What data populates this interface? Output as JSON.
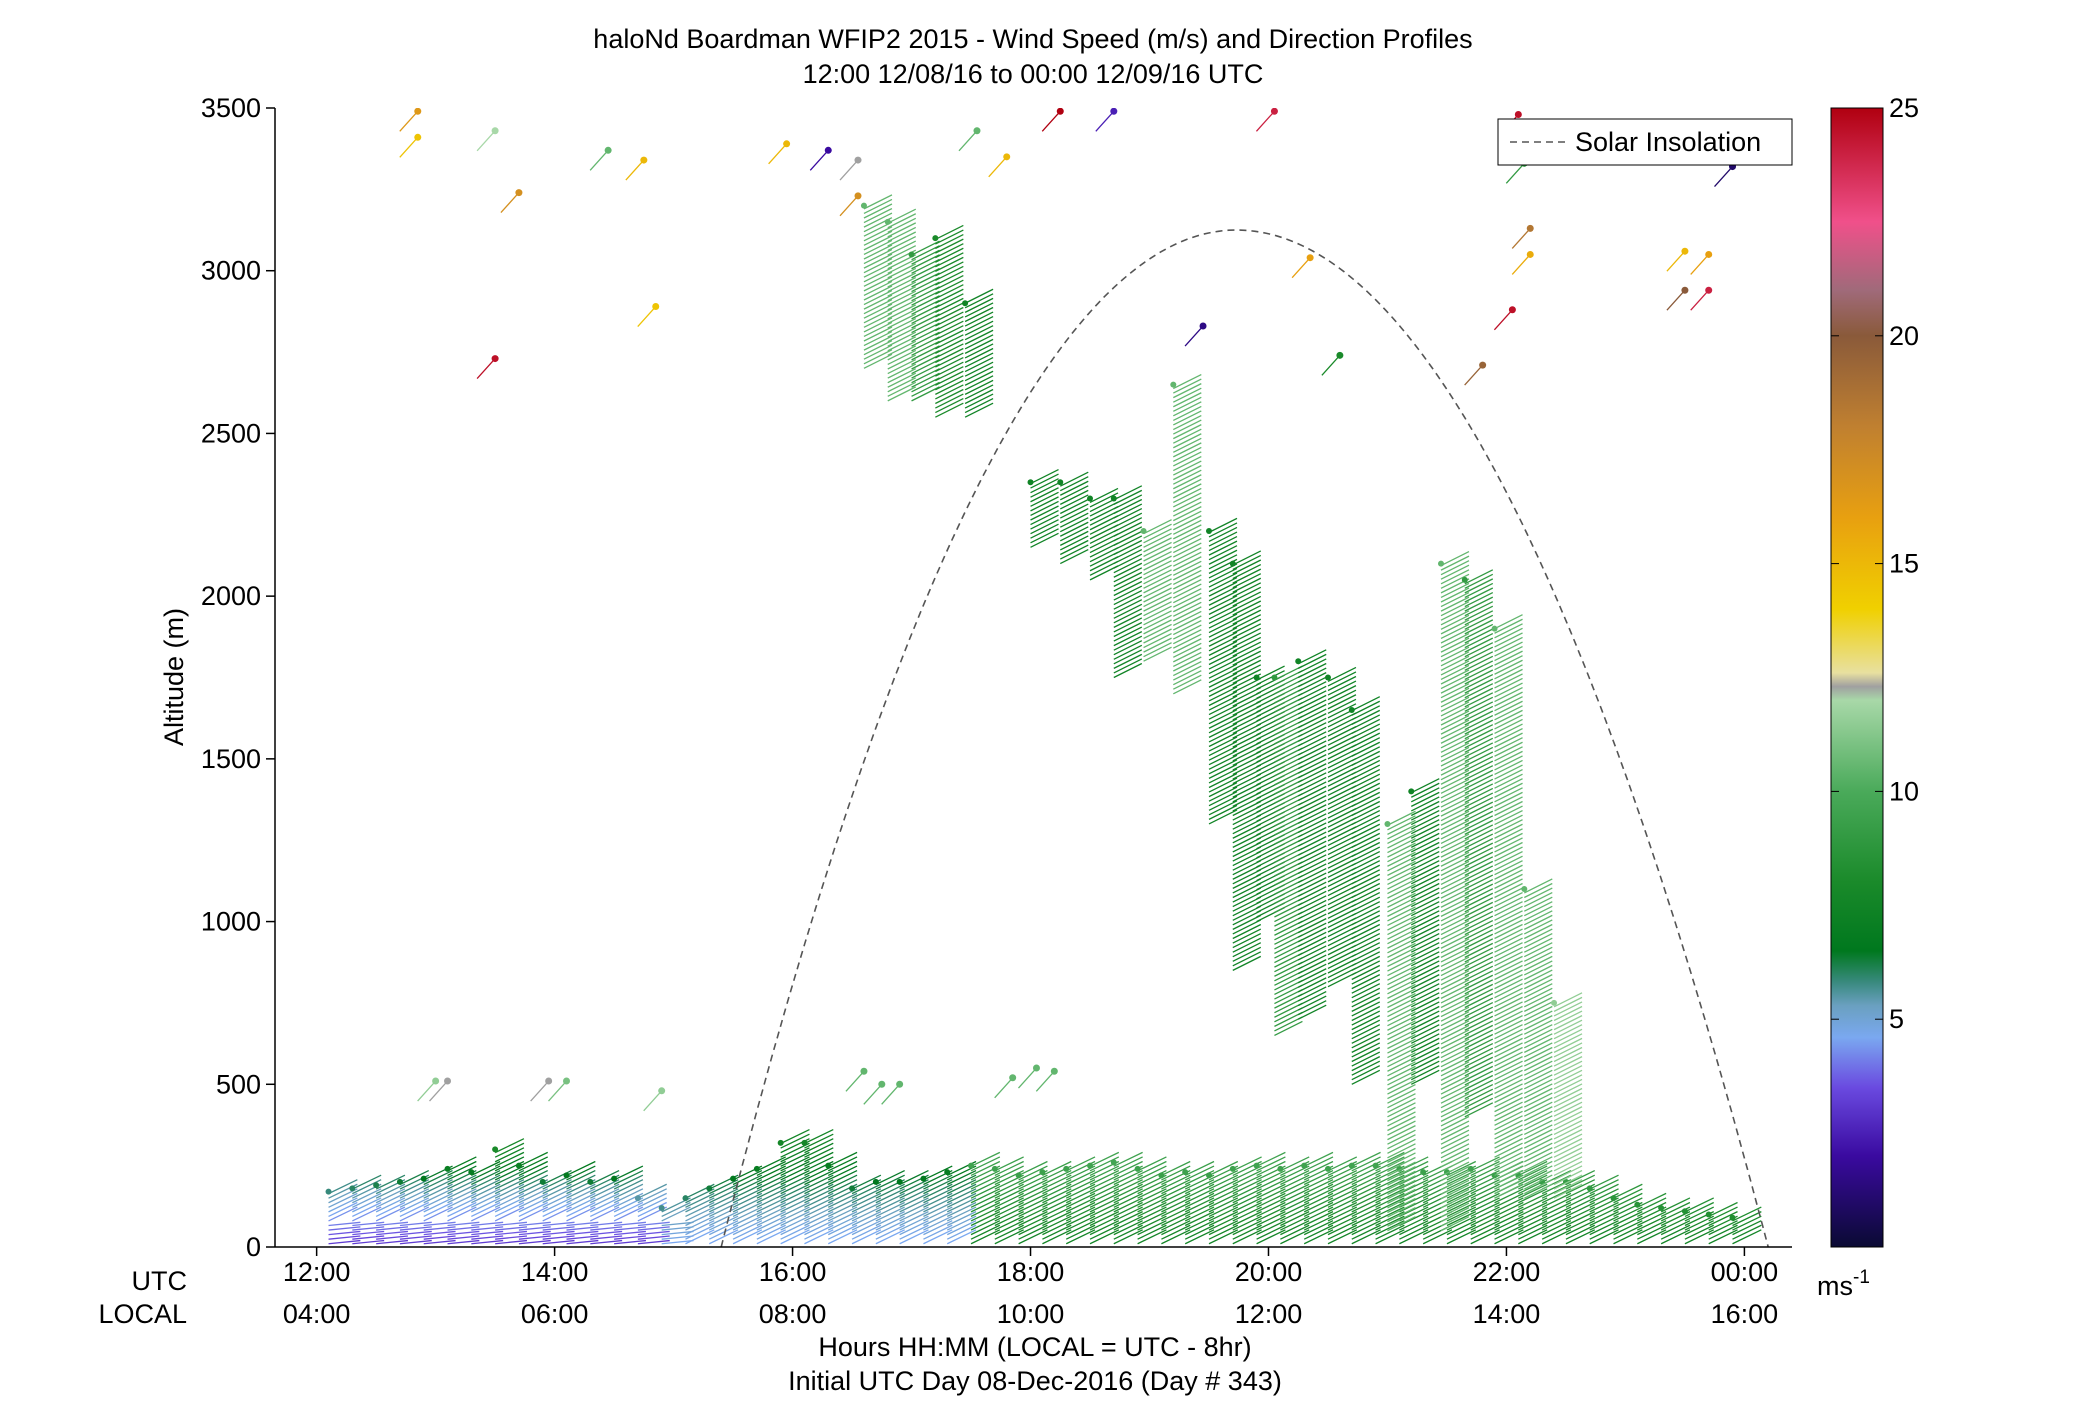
{
  "chart_data": {
    "type": "scatter",
    "title": "haloNd Boardman WFIP2 2015 - Wind Speed (m/s) and Direction Profiles",
    "subtitle": "12:00 12/08/16 to 00:00 12/09/16  UTC",
    "ylabel": "Altitude (m)",
    "xlabel": "Hours HH:MM  (LOCAL = UTC - 8hr)",
    "xlabel2": "Initial UTC Day 08-Dec-2016 (Day # 343)",
    "row_label_utc": "UTC",
    "row_label_local": "LOCAL",
    "xlim_hours": [
      11.65,
      24.4
    ],
    "ylim": [
      0,
      3500
    ],
    "y_ticks": [
      {
        "value": 0,
        "label": "0"
      },
      {
        "value": 500,
        "label": "500"
      },
      {
        "value": 1000,
        "label": "1000"
      },
      {
        "value": 1500,
        "label": "1500"
      },
      {
        "value": 2000,
        "label": "2000"
      },
      {
        "value": 2500,
        "label": "2500"
      },
      {
        "value": 3000,
        "label": "3000"
      },
      {
        "value": 3500,
        "label": "3500"
      }
    ],
    "x_ticks": [
      {
        "hour": 12,
        "utc": "12:00",
        "local": "04:00"
      },
      {
        "hour": 14,
        "utc": "14:00",
        "local": "06:00"
      },
      {
        "hour": 16,
        "utc": "16:00",
        "local": "08:00"
      },
      {
        "hour": 18,
        "utc": "18:00",
        "local": "10:00"
      },
      {
        "hour": 20,
        "utc": "20:00",
        "local": "12:00"
      },
      {
        "hour": 22,
        "utc": "22:00",
        "local": "14:00"
      },
      {
        "hour": 24,
        "utc": "00:00",
        "local": "16:00"
      }
    ],
    "legend": {
      "entry": "Solar Insolation",
      "position": "top-right",
      "style": "dashed",
      "color": "#555555"
    },
    "solar_insolation": {
      "start_hour": 15.4,
      "peak_hour": 19.73,
      "peak_altitude": 3125,
      "end_hour": 24.2
    },
    "colorbar": {
      "min": 0,
      "max": 25,
      "ticks": [
        {
          "value": 5,
          "label": "5"
        },
        {
          "value": 10,
          "label": "10"
        },
        {
          "value": 15,
          "label": "15"
        },
        {
          "value": 20,
          "label": "20"
        },
        {
          "value": 25,
          "label": "25"
        }
      ],
      "unit_label": "ms",
      "unit_sup": "-1",
      "stops": [
        {
          "v": 0,
          "c": "#0a0a33"
        },
        {
          "v": 2,
          "c": "#3a0aa0"
        },
        {
          "v": 3.5,
          "c": "#6a4ae0"
        },
        {
          "v": 4.6,
          "c": "#7aa8f0"
        },
        {
          "v": 5.3,
          "c": "#6aa0c0"
        },
        {
          "v": 5.8,
          "c": "#3a8a80"
        },
        {
          "v": 6.5,
          "c": "#00781e"
        },
        {
          "v": 8,
          "c": "#1a8a2a"
        },
        {
          "v": 10,
          "c": "#4aaa5a"
        },
        {
          "v": 12,
          "c": "#a8d8a8"
        },
        {
          "v": 12.3,
          "c": "#a0a0a0"
        },
        {
          "v": 12.6,
          "c": "#e8e0a0"
        },
        {
          "v": 14,
          "c": "#f0d000"
        },
        {
          "v": 16,
          "c": "#e8a010"
        },
        {
          "v": 18,
          "c": "#c08030"
        },
        {
          "v": 20,
          "c": "#8a5a3a"
        },
        {
          "v": 21,
          "c": "#a06a7a"
        },
        {
          "v": 22.5,
          "c": "#f0508a"
        },
        {
          "v": 25,
          "c": "#b00010"
        }
      ]
    },
    "profile_times_hours": [
      12.1,
      12.3,
      12.5,
      12.7,
      12.9,
      13.1,
      13.3,
      13.5,
      13.7,
      13.9,
      14.1,
      14.3,
      14.5,
      14.7,
      14.9,
      15.1,
      15.3,
      15.5,
      15.7,
      15.9,
      16.1,
      16.3,
      16.5,
      16.7,
      16.9,
      17.1,
      17.3,
      17.5,
      17.7,
      17.9,
      18.1,
      18.3,
      18.5,
      18.7,
      18.9,
      19.1,
      19.3,
      19.5,
      19.7,
      19.9,
      20.1,
      20.3,
      20.5,
      20.7,
      20.9,
      21.1,
      21.3,
      21.5,
      21.7,
      21.9,
      22.1,
      22.3,
      22.5,
      22.7,
      22.9,
      23.1,
      23.3,
      23.5,
      23.7,
      23.9
    ],
    "profile_tops_m": [
      170,
      180,
      190,
      200,
      210,
      240,
      230,
      300,
      250,
      200,
      220,
      200,
      210,
      150,
      120,
      150,
      180,
      210,
      240,
      320,
      320,
      250,
      180,
      200,
      200,
      210,
      230,
      250,
      240,
      220,
      230,
      240,
      250,
      260,
      240,
      220,
      230,
      220,
      240,
      250,
      240,
      250,
      240,
      250,
      250,
      240,
      230,
      230,
      240,
      220,
      220,
      200,
      200,
      180,
      150,
      130,
      120,
      110,
      100,
      90
    ],
    "speed_regimes": [
      {
        "t0": 12.0,
        "t1": 14.8,
        "z0": 0,
        "z1": 300,
        "speed_bottom": 3,
        "speed_top": 8
      },
      {
        "t0": 14.8,
        "t1": 17.4,
        "z0": 0,
        "z1": 350,
        "speed_bottom": 4.5,
        "speed_top": 8
      },
      {
        "t0": 17.4,
        "t1": 24.0,
        "z0": 0,
        "z1": 300,
        "speed_bottom": 7.5,
        "speed_top": 10
      }
    ],
    "upper_segments": [
      {
        "t": 16.6,
        "z0": 2700,
        "z1": 3200,
        "speed": 10.5
      },
      {
        "t": 16.8,
        "z0": 2600,
        "z1": 3150,
        "speed": 10.5
      },
      {
        "t": 17.0,
        "z0": 2600,
        "z1": 3050,
        "speed": 9
      },
      {
        "t": 17.2,
        "z0": 2550,
        "z1": 3100,
        "speed": 8
      },
      {
        "t": 17.45,
        "z0": 2550,
        "z1": 2900,
        "speed": 7.5
      },
      {
        "t": 18.0,
        "z0": 2150,
        "z1": 2350,
        "speed": 7.5
      },
      {
        "t": 18.25,
        "z0": 2100,
        "z1": 2350,
        "speed": 7.5
      },
      {
        "t": 18.5,
        "z0": 2050,
        "z1": 2300,
        "speed": 7.5
      },
      {
        "t": 18.7,
        "z0": 1750,
        "z1": 2300,
        "speed": 7.5
      },
      {
        "t": 18.95,
        "z0": 1800,
        "z1": 2200,
        "speed": 10.5
      },
      {
        "t": 19.2,
        "z0": 1700,
        "z1": 2650,
        "speed": 10.5
      },
      {
        "t": 19.5,
        "z0": 1300,
        "z1": 2200,
        "speed": 7.5
      },
      {
        "t": 19.7,
        "z0": 850,
        "z1": 2100,
        "speed": 7.5
      },
      {
        "t": 19.9,
        "z0": 1000,
        "z1": 1750,
        "speed": 7.5
      },
      {
        "t": 20.05,
        "z0": 650,
        "z1": 1750,
        "speed": 9
      },
      {
        "t": 20.25,
        "z0": 700,
        "z1": 1800,
        "speed": 7.5
      },
      {
        "t": 20.5,
        "z0": 800,
        "z1": 1750,
        "speed": 7.5
      },
      {
        "t": 20.7,
        "z0": 500,
        "z1": 1650,
        "speed": 7.5
      },
      {
        "t": 21.0,
        "z0": 50,
        "z1": 1300,
        "speed": 10.5
      },
      {
        "t": 21.2,
        "z0": 500,
        "z1": 1400,
        "speed": 7.5
      },
      {
        "t": 21.45,
        "z0": 50,
        "z1": 2100,
        "speed": 10.5
      },
      {
        "t": 21.65,
        "z0": 400,
        "z1": 2050,
        "speed": 9
      },
      {
        "t": 21.9,
        "z0": 150,
        "z1": 1900,
        "speed": 10.5
      },
      {
        "t": 22.15,
        "z0": 150,
        "z1": 1100,
        "speed": 10.5
      },
      {
        "t": 22.4,
        "z0": 150,
        "z1": 750,
        "speed": 11.5
      }
    ],
    "scatter_points": [
      {
        "t": 12.85,
        "z": 3490,
        "speed": 16.5
      },
      {
        "t": 12.85,
        "z": 3410,
        "speed": 14.5
      },
      {
        "t": 13.5,
        "z": 2730,
        "speed": 24.5
      },
      {
        "t": 13.5,
        "z": 3430,
        "speed": 12
      },
      {
        "t": 13.7,
        "z": 3240,
        "speed": 17
      },
      {
        "t": 14.45,
        "z": 3370,
        "speed": 10.5
      },
      {
        "t": 14.75,
        "z": 3340,
        "speed": 15
      },
      {
        "t": 14.85,
        "z": 2890,
        "speed": 14.5
      },
      {
        "t": 15.95,
        "z": 3390,
        "speed": 15
      },
      {
        "t": 16.3,
        "z": 3370,
        "speed": 2
      },
      {
        "t": 16.55,
        "z": 3340,
        "speed": 12.3
      },
      {
        "t": 16.55,
        "z": 3230,
        "speed": 17
      },
      {
        "t": 17.55,
        "z": 3430,
        "speed": 10.5
      },
      {
        "t": 17.8,
        "z": 3350,
        "speed": 15
      },
      {
        "t": 18.25,
        "z": 3490,
        "speed": 25
      },
      {
        "t": 18.7,
        "z": 3490,
        "speed": 2.5
      },
      {
        "t": 19.45,
        "z": 2830,
        "speed": 1.5
      },
      {
        "t": 20.05,
        "z": 3490,
        "speed": 24
      },
      {
        "t": 20.35,
        "z": 3040,
        "speed": 16
      },
      {
        "t": 20.6,
        "z": 2740,
        "speed": 8
      },
      {
        "t": 21.8,
        "z": 2710,
        "speed": 19.5
      },
      {
        "t": 22.05,
        "z": 2880,
        "speed": 24.5
      },
      {
        "t": 22.1,
        "z": 3480,
        "speed": 24.5
      },
      {
        "t": 22.15,
        "z": 3330,
        "speed": 9
      },
      {
        "t": 22.2,
        "z": 3130,
        "speed": 18.5
      },
      {
        "t": 22.2,
        "z": 3050,
        "speed": 15.5
      },
      {
        "t": 23.5,
        "z": 3060,
        "speed": 15
      },
      {
        "t": 23.5,
        "z": 2940,
        "speed": 20
      },
      {
        "t": 23.7,
        "z": 2940,
        "speed": 24
      },
      {
        "t": 23.7,
        "z": 3050,
        "speed": 16
      },
      {
        "t": 23.9,
        "z": 3320,
        "speed": 1
      },
      {
        "t": 13.0,
        "z": 510,
        "speed": 11.5
      },
      {
        "t": 13.1,
        "z": 510,
        "speed": 12.3
      },
      {
        "t": 13.95,
        "z": 510,
        "speed": 12.3
      },
      {
        "t": 14.1,
        "z": 510,
        "speed": 11
      },
      {
        "t": 14.9,
        "z": 480,
        "speed": 11.5
      },
      {
        "t": 16.6,
        "z": 540,
        "speed": 10.5
      },
      {
        "t": 16.75,
        "z": 500,
        "speed": 10.5
      },
      {
        "t": 16.9,
        "z": 500,
        "speed": 10.5
      },
      {
        "t": 17.85,
        "z": 520,
        "speed": 10.5
      },
      {
        "t": 18.05,
        "z": 550,
        "speed": 10.5
      },
      {
        "t": 18.2,
        "z": 540,
        "speed": 10.5
      }
    ]
  }
}
